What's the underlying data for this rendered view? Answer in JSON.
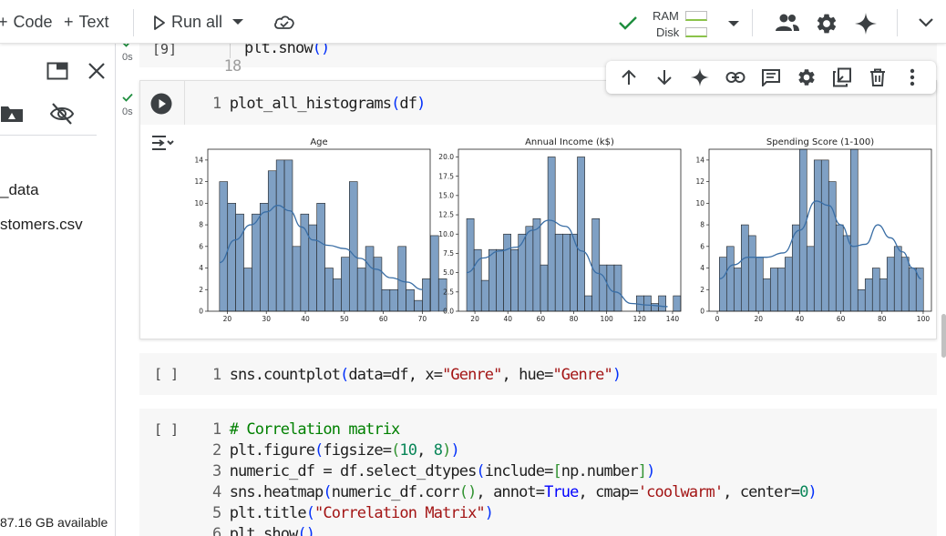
{
  "toolbar": {
    "code_label": "Code",
    "text_label": "Text",
    "run_all_label": "Run all",
    "ram_label": "RAM",
    "disk_label": "Disk"
  },
  "sidebar": {
    "folder_name": "_data",
    "file_name": "stomers.csv",
    "disk_available": "87.16 GB available"
  },
  "cells": {
    "prev": {
      "exec": "[9]",
      "time": "0s",
      "line_no": "18",
      "code_obj": "plt",
      "code_fn": ".show",
      "paren": "()"
    },
    "hist": {
      "time": "0s",
      "line_no": "1",
      "code_fn": "plot_all_histograms",
      "arg": "df"
    },
    "countplot": {
      "exec": "[ ]",
      "line_no": "1",
      "p1": "sns.countplot",
      "p2": "data=df, x=",
      "s1": "\"Genre\"",
      "p3": ", hue=",
      "s2": "\"Genre\""
    },
    "corr": {
      "exec": "[ ]",
      "lines": [
        {
          "n": "1",
          "comment": "# Correlation matrix"
        },
        {
          "n": "2",
          "a": "plt.figure",
          "b": "figsize=",
          "num1": "10",
          "c": ", ",
          "num2": "8"
        },
        {
          "n": "3",
          "a": "numeric_df = df.select_dtypes",
          "b": "include=",
          "c": "np.number"
        },
        {
          "n": "4",
          "a": "sns.heatmap",
          "b": "numeric_df.corr",
          "c": ", annot=",
          "bool": "True",
          "d": ", cmap=",
          "str": "'coolwarm'",
          "e": ", center=",
          "num": "0"
        },
        {
          "n": "5",
          "a": "plt.title",
          "str": "\"Correlation Matrix\""
        },
        {
          "n": "6",
          "a": "plt.show",
          "b": "()"
        }
      ]
    }
  },
  "colors": {
    "bar_fill": "#7fa0c4",
    "bar_stroke": "#1f1f1f",
    "kde_line": "#3a6ea5",
    "check_green": "#1e8e3e",
    "accent_blue": "#1a73e8"
  },
  "chart_data": [
    {
      "type": "bar",
      "title": "Age",
      "xlabel": "",
      "ylabel": "",
      "bin_start": 18,
      "bin_width": 2.08,
      "values": [
        12,
        10,
        9,
        4,
        9,
        10,
        13,
        14,
        14,
        6,
        9,
        8,
        10,
        4,
        3,
        5,
        12,
        4,
        6,
        5,
        2,
        2,
        6,
        2,
        1,
        3,
        7,
        3
      ],
      "kde": [
        [
          18,
          4.5
        ],
        [
          22,
          6.6
        ],
        [
          26,
          8.0
        ],
        [
          30,
          9.2
        ],
        [
          33,
          9.8
        ],
        [
          36,
          9.3
        ],
        [
          39,
          7.8
        ],
        [
          42,
          6.6
        ],
        [
          46,
          6.1
        ],
        [
          50,
          5.8
        ],
        [
          54,
          4.9
        ],
        [
          58,
          3.9
        ],
        [
          62,
          3.1
        ],
        [
          66,
          2.7
        ],
        [
          70,
          2.0
        ]
      ],
      "xlim": [
        15,
        72
      ],
      "ylim": [
        0,
        15
      ],
      "xticks": [
        20,
        30,
        40,
        50,
        60,
        70
      ],
      "yticks": [
        0,
        2,
        4,
        6,
        8,
        10,
        12,
        14
      ],
      "grid": false
    },
    {
      "type": "bar",
      "title": "Annual Income (k$)",
      "xlabel": "",
      "ylabel": "",
      "bin_start": 15,
      "bin_width": 4.48,
      "values": [
        12,
        8,
        4,
        8,
        8,
        10,
        8,
        10,
        11,
        12,
        6,
        20,
        10,
        10,
        10,
        20,
        2,
        12,
        6,
        6,
        6,
        0,
        0,
        2,
        2,
        1,
        2,
        0,
        2
      ],
      "kde": [
        [
          15,
          5.0
        ],
        [
          25,
          6.9
        ],
        [
          35,
          7.8
        ],
        [
          45,
          8.3
        ],
        [
          55,
          10.5
        ],
        [
          65,
          11.8
        ],
        [
          75,
          11.0
        ],
        [
          85,
          7.8
        ],
        [
          95,
          4.9
        ],
        [
          105,
          2.5
        ],
        [
          115,
          1.0
        ],
        [
          125,
          0.8
        ],
        [
          137,
          0.6
        ]
      ],
      "xlim": [
        10,
        145
      ],
      "ylim": [
        0,
        21
      ],
      "xticks": [
        20,
        40,
        60,
        80,
        100,
        120,
        140
      ],
      "yticks": [
        0.0,
        2.5,
        5.0,
        7.5,
        10.0,
        12.5,
        15.0,
        17.5,
        20.0
      ],
      "grid": false
    },
    {
      "type": "bar",
      "title": "Spending Score (1-100)",
      "xlabel": "",
      "ylabel": "",
      "bin_start": 1,
      "bin_width": 3.54,
      "values": [
        5,
        6,
        4,
        8,
        7,
        5,
        3,
        4,
        4,
        5,
        8,
        15,
        6,
        14,
        14,
        12,
        8,
        7,
        15,
        2,
        3,
        4,
        3,
        5,
        6,
        5,
        4,
        4
      ],
      "kde": [
        [
          1,
          3.0
        ],
        [
          8,
          4.3
        ],
        [
          15,
          5.0
        ],
        [
          24,
          5.0
        ],
        [
          32,
          5.4
        ],
        [
          40,
          7.5
        ],
        [
          48,
          10.2
        ],
        [
          54,
          9.8
        ],
        [
          60,
          8.0
        ],
        [
          66,
          6.0
        ],
        [
          72,
          6.2
        ],
        [
          78,
          8.0
        ],
        [
          84,
          6.8
        ],
        [
          90,
          5.5
        ],
        [
          95,
          4.0
        ],
        [
          99,
          3.0
        ]
      ],
      "xlim": [
        -4,
        104
      ],
      "ylim": [
        0,
        15
      ],
      "xticks": [
        0,
        20,
        40,
        60,
        80,
        100
      ],
      "yticks": [
        0,
        2,
        4,
        6,
        8,
        10,
        12,
        14
      ],
      "grid": false
    }
  ]
}
